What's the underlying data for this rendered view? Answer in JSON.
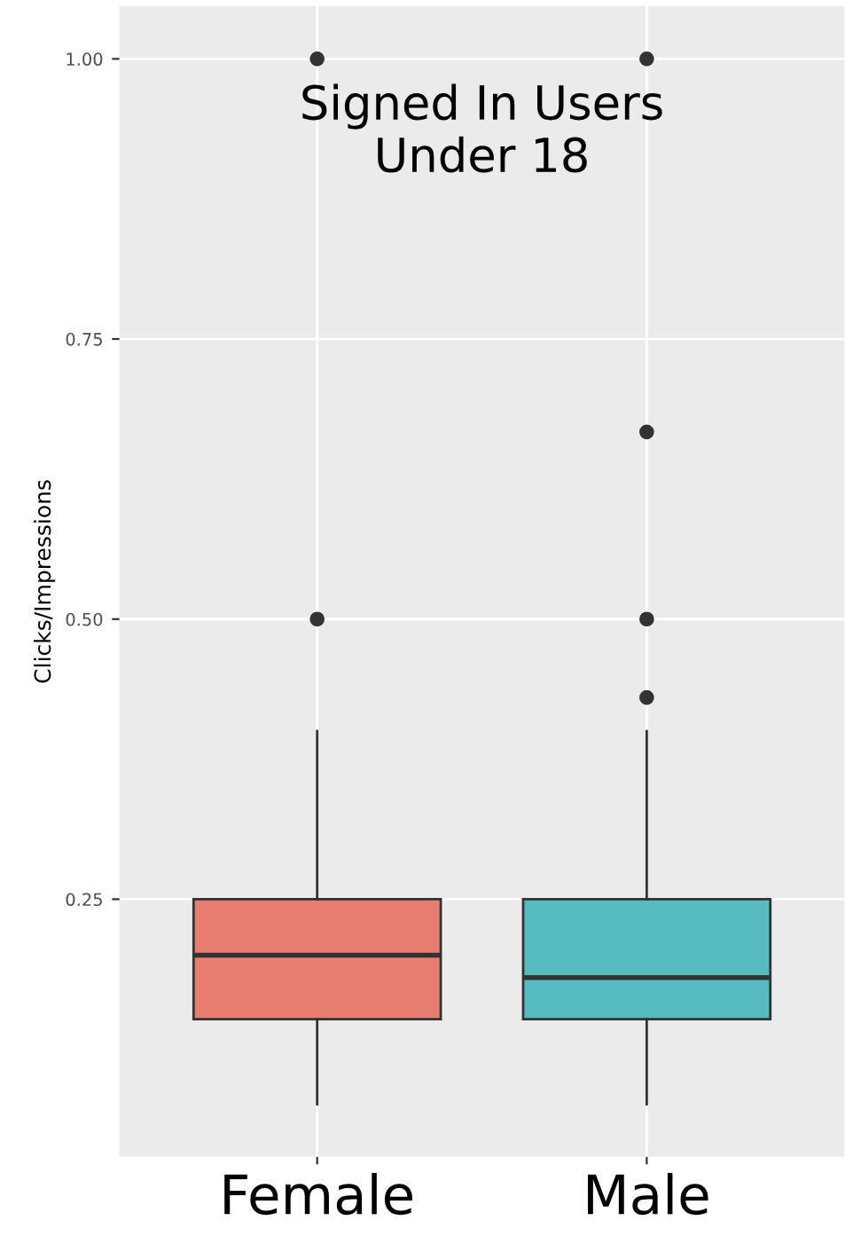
{
  "chart_data": {
    "type": "box",
    "title": "Signed In Users\nUnder 18",
    "ylabel": "Clicks/Impressions",
    "categories": [
      "Female",
      "Male"
    ],
    "colors": [
      "#e87e72",
      "#56bcc2"
    ],
    "boxes": [
      {
        "low": 0.067,
        "q1": 0.143,
        "median": 0.2,
        "q3": 0.25,
        "high": 0.4,
        "outliers": [
          0.5,
          1.0
        ]
      },
      {
        "low": 0.067,
        "q1": 0.143,
        "median": 0.18,
        "q3": 0.25,
        "high": 0.4,
        "outliers": [
          0.43,
          0.5,
          0.667,
          1.0
        ]
      }
    ],
    "ylim": [
      0.02,
      1.047
    ],
    "yticks": [
      {
        "value": 0.25,
        "label": "0.25"
      },
      {
        "value": 0.5,
        "label": "0.50"
      },
      {
        "value": 0.75,
        "label": "0.75"
      },
      {
        "value": 1.0,
        "label": "1.00"
      }
    ],
    "grid": true,
    "legend": false
  }
}
